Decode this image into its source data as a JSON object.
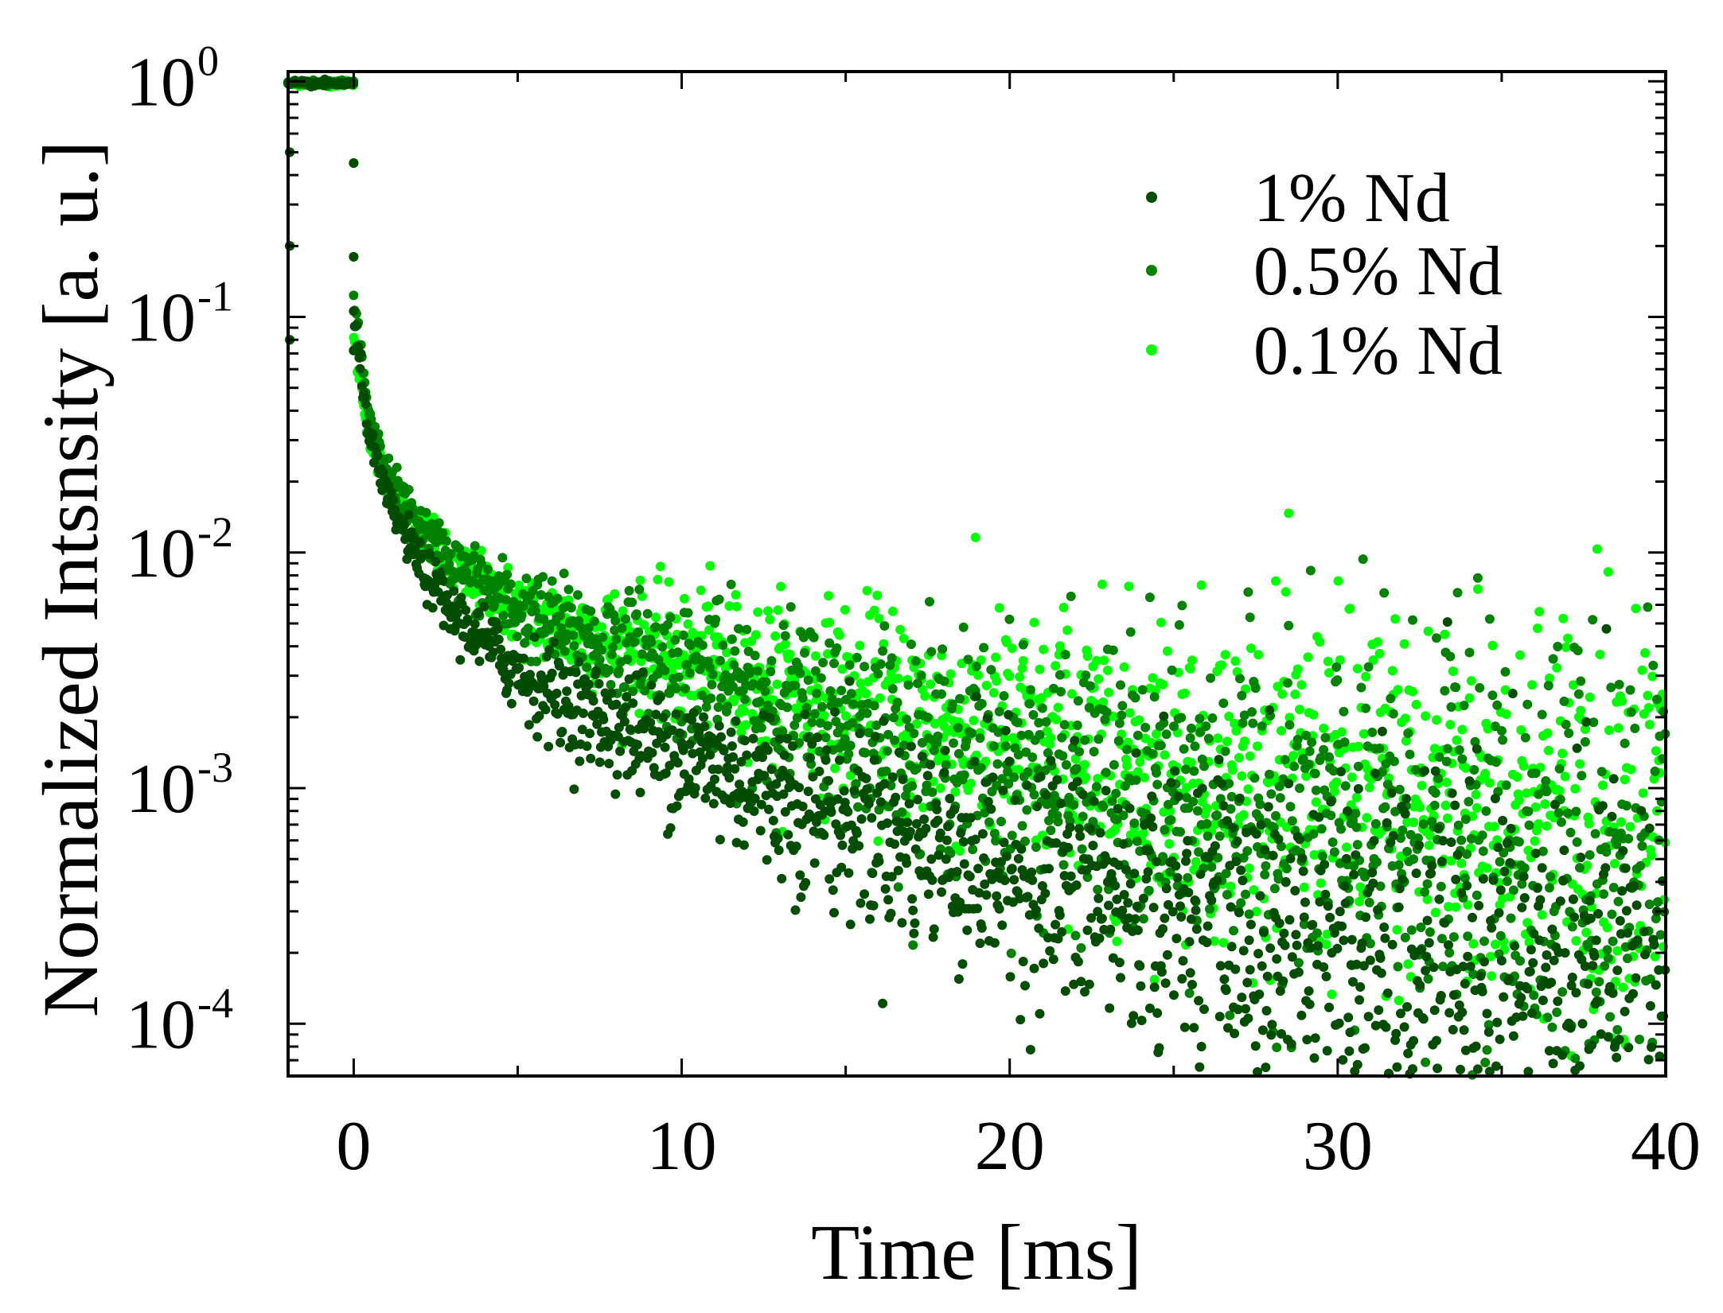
{
  "chart_data": {
    "type": "scatter",
    "title": "",
    "xlabel": "Time [ms]",
    "ylabel": "Normalized Intsnsity [a. u.]",
    "x_scale": "linear",
    "y_scale": "log",
    "xlim": [
      -2,
      40
    ],
    "ylim": [
      6e-05,
      1.1
    ],
    "x_ticks": [
      {
        "value": 0,
        "label": "0"
      },
      {
        "value": 10,
        "label": "10"
      },
      {
        "value": 20,
        "label": "20"
      },
      {
        "value": 30,
        "label": "30"
      },
      {
        "value": 40,
        "label": "40"
      }
    ],
    "y_ticks": [
      {
        "value": 1,
        "base": "10",
        "exp": "0"
      },
      {
        "value": 0.1,
        "base": "10",
        "exp": "-1"
      },
      {
        "value": 0.01,
        "base": "10",
        "exp": "-2"
      },
      {
        "value": 0.001,
        "base": "10",
        "exp": "-3"
      },
      {
        "value": 0.0001,
        "base": "10",
        "exp": "-4"
      }
    ],
    "legend_position": "top-right",
    "grid": false,
    "series": [
      {
        "name": "1% Nd",
        "color": "#004d00",
        "curve": {
          "t": [
            0,
            0.5,
            1,
            2,
            3,
            5,
            7,
            10,
            15,
            20,
            25,
            30,
            35,
            40
          ],
          "y": [
            0.1,
            0.03,
            0.017,
            0.009,
            0.0055,
            0.0031,
            0.0021,
            0.0014,
            0.00075,
            0.00045,
            0.00028,
            0.00019,
            0.00014,
            0.00011
          ]
        }
      },
      {
        "name": "0.5% Nd",
        "color": "#008200",
        "curve": {
          "t": [
            0,
            0.5,
            1,
            2,
            3,
            5,
            7,
            10,
            15,
            20,
            25,
            30,
            35,
            40
          ],
          "y": [
            0.12,
            0.035,
            0.022,
            0.013,
            0.009,
            0.0058,
            0.0044,
            0.0032,
            0.0019,
            0.0012,
            0.00085,
            0.00065,
            0.00055,
            0.00048
          ]
        }
      },
      {
        "name": "0.1% Nd",
        "color": "#00ff00",
        "curve": {
          "t": [
            0,
            0.5,
            1,
            2,
            3,
            5,
            7,
            10,
            15,
            20,
            25,
            30,
            35,
            40
          ],
          "y": [
            0.08,
            0.03,
            0.02,
            0.012,
            0.0085,
            0.0057,
            0.0045,
            0.0035,
            0.0023,
            0.0016,
            0.0012,
            0.00095,
            0.0008,
            0.0007
          ]
        }
      }
    ],
    "plateau": {
      "t_start": -2,
      "t_end": 0,
      "value": 0.98
    }
  }
}
